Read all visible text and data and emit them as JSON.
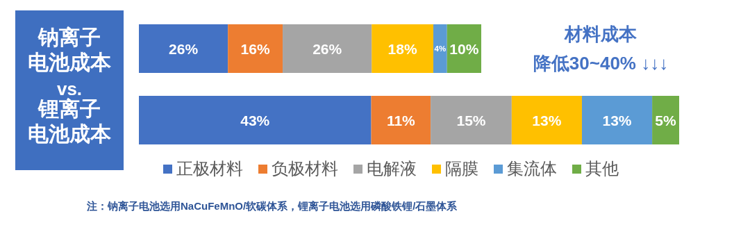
{
  "chart_data": [
    {
      "type": "bar",
      "orientation": "horizontal",
      "stacked": true,
      "categories": [
        "钠离子电池成本"
      ],
      "series": [
        {
          "color": "#4472c4",
          "values": [
            26
          ],
          "value_labels": [
            "26%"
          ]
        },
        {
          "color": "#ed7d31",
          "values": [
            16
          ],
          "value_labels": [
            "16%"
          ]
        },
        {
          "color": "#a5a5a5",
          "values": [
            26
          ],
          "value_labels": [
            "26%"
          ]
        },
        {
          "color": "#ffc000",
          "values": [
            18
          ],
          "value_labels": [
            "18%"
          ]
        },
        {
          "color": "#5b9bd5",
          "values": [
            4
          ],
          "value_labels": [
            "4%"
          ]
        },
        {
          "color": "#70ad47",
          "values": [
            10
          ],
          "value_labels": [
            "10%"
          ]
        }
      ],
      "annotations": [
        "vs.",
        "材料成本",
        "降低30~40% ↓↓↓"
      ]
    },
    {
      "type": "bar",
      "orientation": "horizontal",
      "stacked": true,
      "categories": [
        "锂离子电池成本"
      ],
      "legend": "bottom",
      "series": [
        {
          "name": "正极材料",
          "color": "#4472c4",
          "values": [
            43
          ],
          "value_labels": [
            "43%"
          ]
        },
        {
          "name": "负极材料",
          "color": "#ed7d31",
          "values": [
            11
          ],
          "value_labels": [
            "11%"
          ]
        },
        {
          "name": "电解液",
          "color": "#a5a5a5",
          "values": [
            15
          ],
          "value_labels": [
            "15%"
          ]
        },
        {
          "name": "隔膜",
          "color": "#ffc000",
          "values": [
            13
          ],
          "value_labels": [
            "13%"
          ]
        },
        {
          "name": "集流体",
          "color": "#5b9bd5",
          "values": [
            13
          ],
          "value_labels": [
            "13%"
          ]
        },
        {
          "name": "其他",
          "color": "#70ad47",
          "values": [
            5
          ],
          "value_labels": [
            "5%"
          ]
        }
      ],
      "annotations": [
        "注：钠离子电池选用NaCuFeMnO/软碳体系，锂离子电池选用磷酸铁锂/石墨体系"
      ]
    }
  ]
}
